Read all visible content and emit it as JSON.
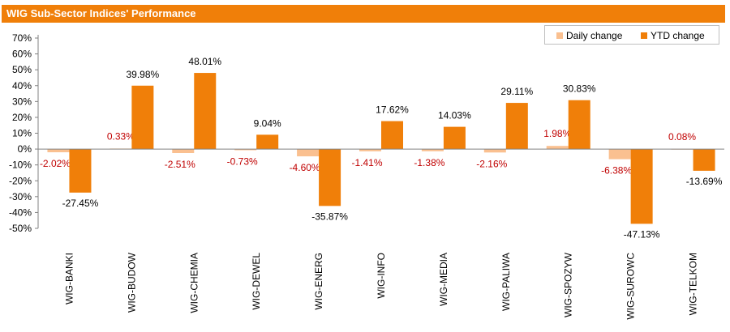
{
  "chart_data": {
    "type": "bar",
    "title": "WIG Sub-Sector Indices' Performance",
    "categories": [
      "WIG-BANKI",
      "WIG-BUDOW",
      "WIG-CHEMIA",
      "WIG-DEWEL",
      "WIG-ENERG",
      "WIG-INFO",
      "WIG-MEDIA",
      "WIG-PALIWA",
      "WIG-SPOZYW",
      "WIG-SUROWC",
      "WIG-TELKOM"
    ],
    "series": [
      {
        "name": "Daily change",
        "color": "#fac090",
        "values": [
          -2.02,
          0.33,
          -2.51,
          -0.73,
          -4.6,
          -1.41,
          -1.38,
          -2.16,
          1.98,
          -6.38,
          0.08
        ],
        "labels": [
          "-2.02%",
          "0.33%",
          "-2.51%",
          "-0.73%",
          "-4.60%",
          "-1.41%",
          "-1.38%",
          "-2.16%",
          "1.98%",
          "-6.38%",
          "0.08%"
        ],
        "label_color": "#c00000"
      },
      {
        "name": "YTD change",
        "color": "#f07f09",
        "values": [
          -27.45,
          39.98,
          48.01,
          9.04,
          -35.87,
          17.62,
          14.03,
          29.11,
          30.83,
          -47.13,
          -13.69
        ],
        "labels": [
          "-27.45%",
          "39.98%",
          "48.01%",
          "9.04%",
          "-35.87%",
          "17.62%",
          "14.03%",
          "29.11%",
          "30.83%",
          "-47.13%",
          "-13.69%"
        ],
        "label_color": "#000000"
      }
    ],
    "yticks": [
      "70%",
      "60%",
      "50%",
      "40%",
      "30%",
      "20%",
      "10%",
      "0%",
      "-10%",
      "-20%",
      "-30%",
      "-40%",
      "-50%"
    ],
    "ylim": [
      -50,
      70
    ],
    "grid": false,
    "legend_position": "top-right"
  }
}
